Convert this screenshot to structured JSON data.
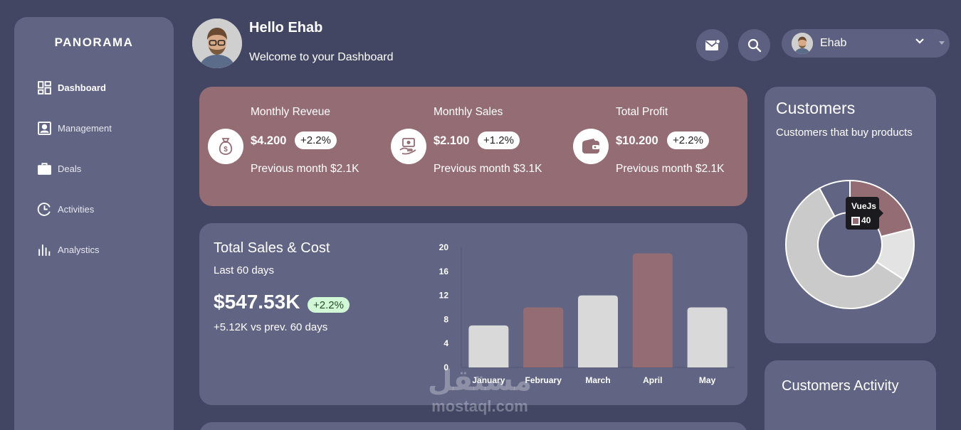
{
  "sidebar": {
    "brand": "PANORAMA",
    "items": [
      {
        "label": "Dashboard",
        "icon": "dashboard-grid-icon",
        "active": true
      },
      {
        "label": "Management",
        "icon": "id-card-icon",
        "active": false
      },
      {
        "label": "Deals",
        "icon": "briefcase-icon",
        "active": false
      },
      {
        "label": "Activities",
        "icon": "clock-icon",
        "active": false
      },
      {
        "label": "Analystics",
        "icon": "bar-chart-icon",
        "active": false
      }
    ]
  },
  "header": {
    "greeting": "Hello Ehab",
    "welcome": "Welcome to your Dashboard",
    "user_name": "Ehab",
    "icons": [
      "mail-icon",
      "search-icon",
      "chevron-down-icon"
    ]
  },
  "stats": [
    {
      "title": "Monthly Reveue",
      "value": "$4.200",
      "change": "+2.2%",
      "previous": "Previous month $2.1K",
      "icon": "money-bag-icon"
    },
    {
      "title": "Monthly Sales",
      "value": "$2.100",
      "change": "+1.2%",
      "previous": "Previous month $3.1K",
      "icon": "cash-hand-icon"
    },
    {
      "title": "Total Profit",
      "value": "$10.200",
      "change": "+2.2%",
      "previous": "Previous month $2.1K",
      "icon": "wallet-icon"
    }
  ],
  "sales": {
    "title": "Total Sales & Cost",
    "period": "Last 60 days",
    "total": "$547.53K",
    "change": "+2.2%",
    "compare": "+5.12K vs prev. 60 days"
  },
  "customers": {
    "title": "Customers",
    "subtitle": "Customers that buy products",
    "tooltip_label": "VueJs",
    "tooltip_value": "40"
  },
  "activity": {
    "title": "Customers Activity"
  },
  "watermark": {
    "arabic": "مستقل",
    "latin": "mostaql.com"
  },
  "colors": {
    "background": "#434663",
    "card": "#616483",
    "accent": "#946d74",
    "bar_light": "#d9d9d9",
    "badge_green": "#d2f7d6"
  },
  "chart_data": [
    {
      "type": "bar",
      "categories": [
        "January",
        "February",
        "March",
        "April",
        "May"
      ],
      "values": [
        7,
        10,
        12,
        19,
        10
      ],
      "bar_colors": [
        "#d9d9d9",
        "#946d74",
        "#d9d9d9",
        "#946d74",
        "#d9d9d9"
      ],
      "yticks": [
        0,
        4,
        8,
        12,
        16,
        20
      ],
      "ylim": [
        0,
        20
      ],
      "grid": false
    },
    {
      "type": "pie",
      "donut": true,
      "categories": [
        "VueJs",
        "",
        "",
        ""
      ],
      "values": [
        40,
        25,
        110,
        15
      ],
      "colors": [
        "#946d74",
        "#e3e3e3",
        "#cacaca",
        "#616483"
      ]
    }
  ]
}
